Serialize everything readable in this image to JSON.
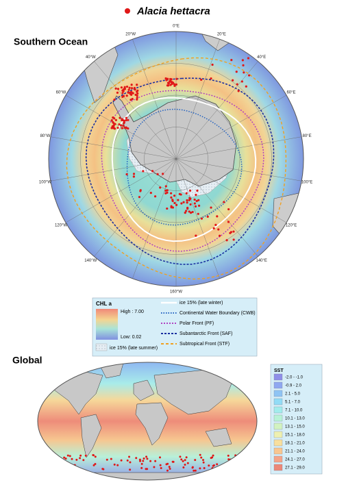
{
  "header": {
    "species": "Alacia hettacra"
  },
  "southern_ocean": {
    "title": "Southern Ocean",
    "longitude_labels": [
      "0°E",
      "20°E",
      "40°E",
      "60°E",
      "80°E",
      "100°E",
      "120°E",
      "140°E",
      "160°W",
      "140°W",
      "120°W",
      "100°W",
      "80°W",
      "60°W",
      "40°W",
      "20°W"
    ]
  },
  "legend": {
    "chl_title": "CHL a",
    "high": "High : 7.00",
    "low": "Low: 0.02",
    "ice_summer": "ice 15% (late summer)",
    "lines": [
      {
        "label": "ice 15% (late winter)",
        "color": "#ffffff"
      },
      {
        "label": "Continental Water Boundary (CWB)",
        "color": "#1f5fbf"
      },
      {
        "label": "Polar Front (PF)",
        "color": "#b040c0"
      },
      {
        "label": "Subantarctic Front (SAF)",
        "color": "#1a2fa0"
      },
      {
        "label": "Subtropical Front (STF)",
        "color": "#f0a020"
      }
    ]
  },
  "global": {
    "title": "Global",
    "sst_title": "SST",
    "sst_classes": [
      {
        "label": "-2.0 - -1.0",
        "color": "#8f8fe8"
      },
      {
        "label": "-0.9 - 2.0",
        "color": "#8fa8f0"
      },
      {
        "label": "2.1 - 5.0",
        "color": "#8fc4f4"
      },
      {
        "label": "5.1 - 7.0",
        "color": "#92dcf6"
      },
      {
        "label": "7.1 - 10.0",
        "color": "#a2ecec"
      },
      {
        "label": "10.1 - 13.0",
        "color": "#b8f2d6"
      },
      {
        "label": "13.1 - 15.0",
        "color": "#d2f2c0"
      },
      {
        "label": "15.1 - 18.0",
        "color": "#eef0b0"
      },
      {
        "label": "18.1 - 21.0",
        "color": "#f8df9e"
      },
      {
        "label": "21.1 - 24.0",
        "color": "#f8c690"
      },
      {
        "label": "24.1 - 27.0",
        "color": "#f4a488"
      },
      {
        "label": "27.1 - 29.0",
        "color": "#ec8878"
      }
    ]
  }
}
